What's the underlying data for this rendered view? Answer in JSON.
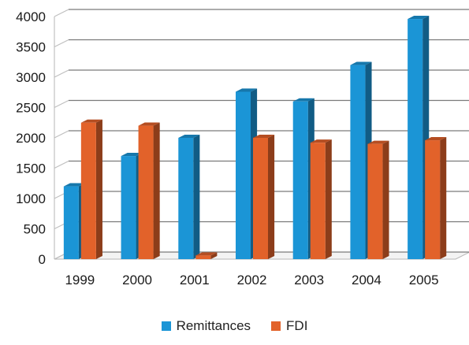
{
  "chart_data": {
    "type": "bar",
    "style": "3d-clustered-column",
    "title": "",
    "xlabel": "",
    "ylabel": "",
    "categories": [
      "1999",
      "2000",
      "2001",
      "2002",
      "2003",
      "2004",
      "2005"
    ],
    "series": [
      {
        "name": "Remittances",
        "color": "#1B95D6",
        "values": [
          1200,
          1700,
          2000,
          2760,
          2600,
          3200,
          3960
        ]
      },
      {
        "name": "FDI",
        "color": "#E2622A",
        "values": [
          2250,
          2200,
          60,
          2000,
          1920,
          1900,
          1960
        ]
      }
    ],
    "ylim": [
      0,
      4000
    ],
    "yticks": [
      "0",
      "500",
      "1000",
      "1500",
      "2000",
      "2500",
      "3000",
      "3500",
      "4000"
    ],
    "grid": true,
    "legend_position": "bottom"
  }
}
